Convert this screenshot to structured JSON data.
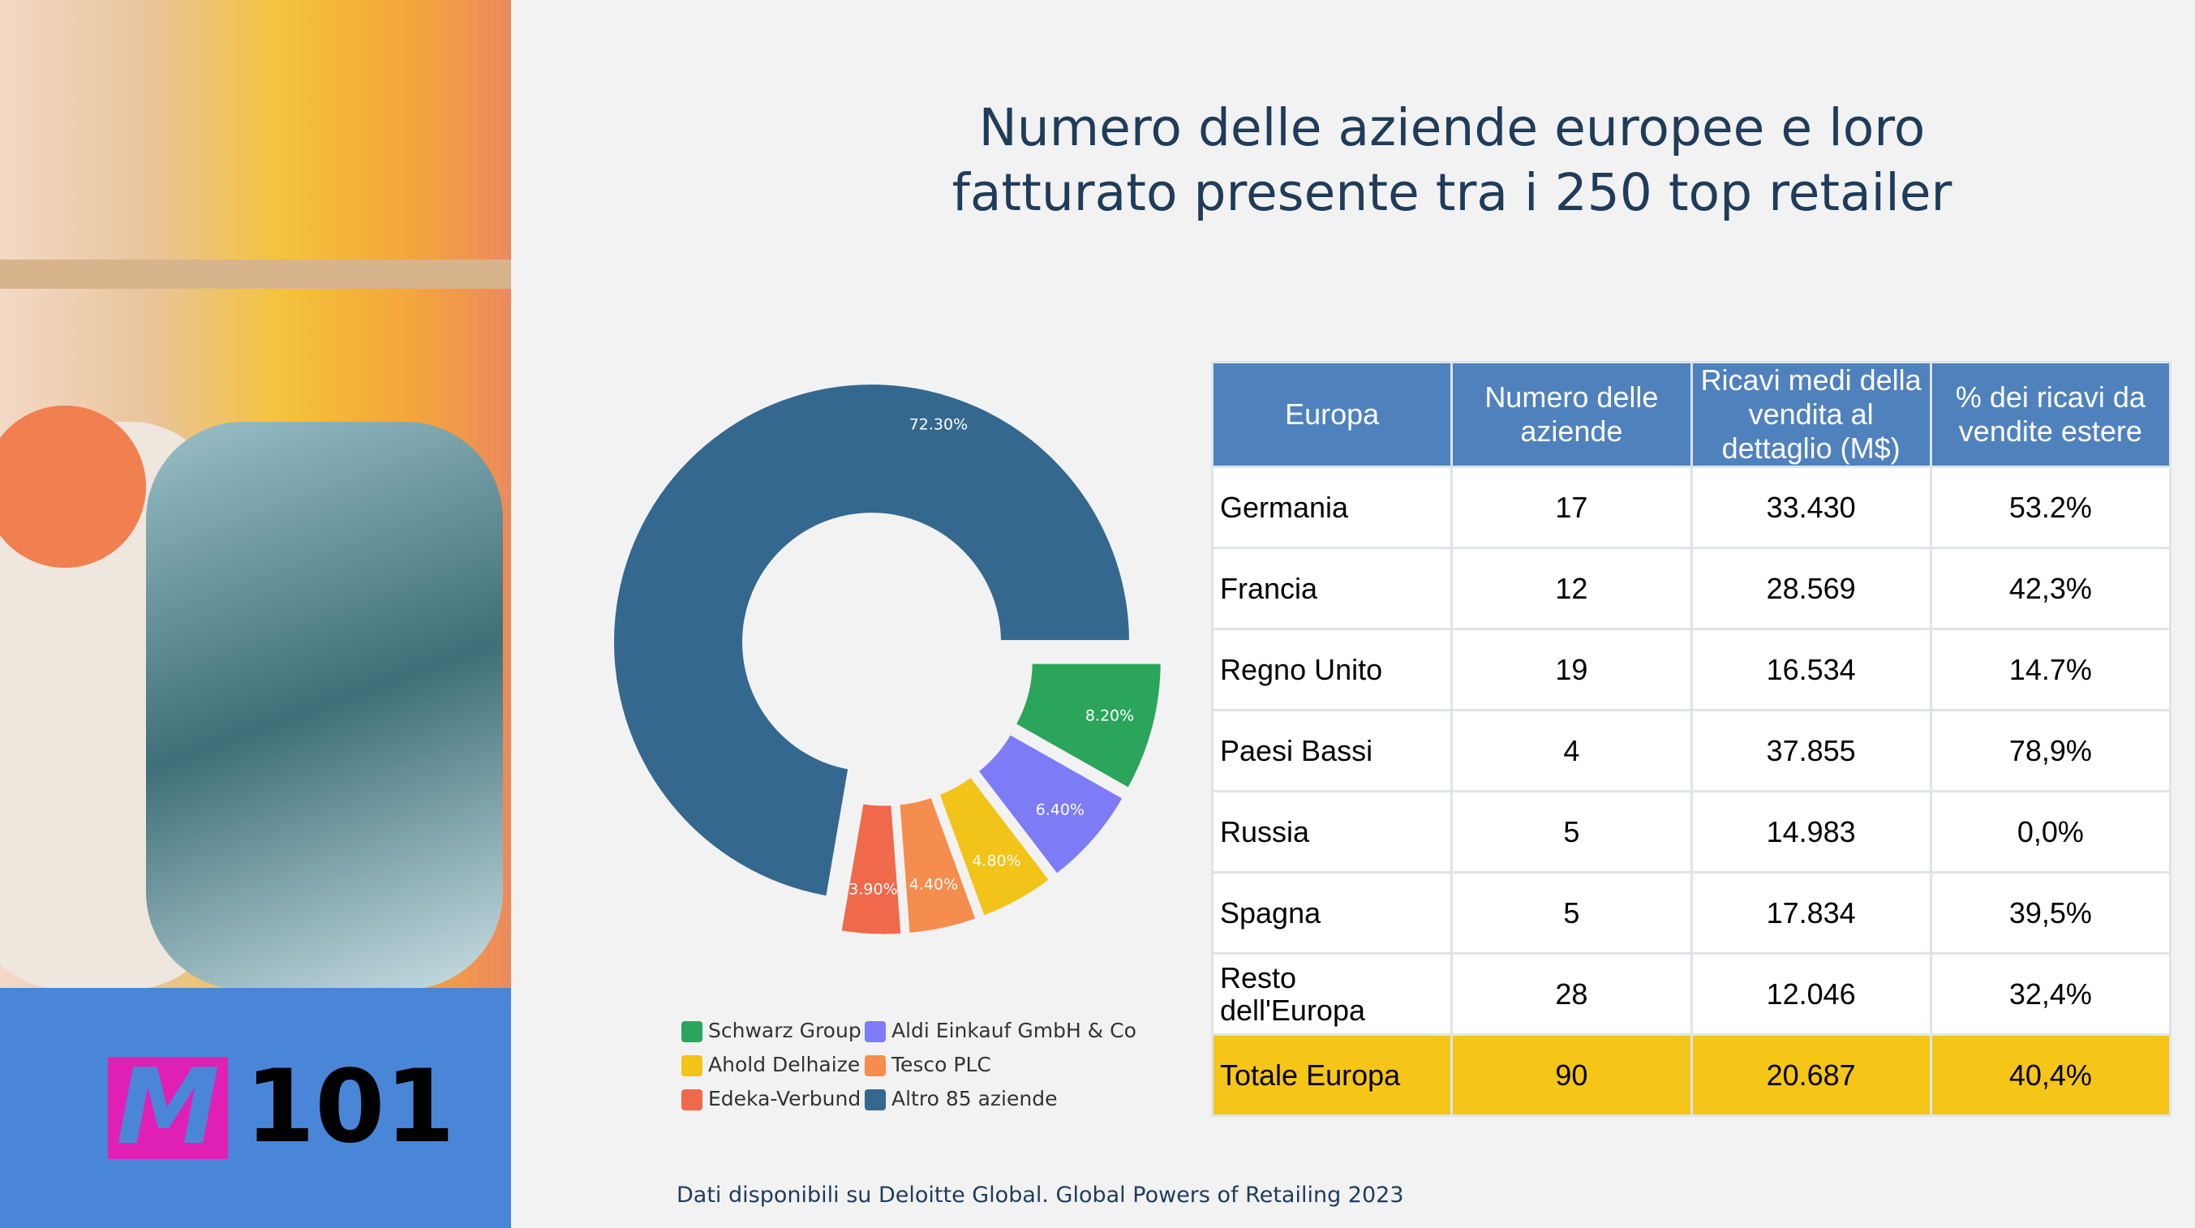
{
  "title": [
    "Numero delle aziende europee e loro",
    "fatturato presente tra i 250 top retailer"
  ],
  "logo": {
    "mark": "M",
    "text": "101"
  },
  "chart_data": {
    "type": "pie",
    "categories": [
      "Schwarz Group",
      "Aldi Einkauf GmbH & Co",
      "Ahold Delhaize",
      "Tesco PLC",
      "Edeka-Verbund",
      "Altro 85 aziende"
    ],
    "values": [
      8.2,
      6.4,
      4.8,
      4.4,
      3.9,
      72.3
    ],
    "value_labels": [
      "8.20%",
      "6.40%",
      "4.80%",
      "4.40%",
      "3.90%",
      "72.30%"
    ],
    "colors": [
      "#2ba55c",
      "#7d7cf6",
      "#f2c318",
      "#f48d4e",
      "#f0694b",
      "#34688f"
    ],
    "donut": true
  },
  "table": {
    "header": [
      "Europa",
      "Numero delle aziende",
      "Ricavi medi della vendita al dettaglio (M$)",
      "% dei ricavi da vendite estere"
    ],
    "rows": [
      [
        "Germania",
        "17",
        "33.430",
        "53.2%"
      ],
      [
        "Francia",
        "12",
        "28.569",
        "42,3%"
      ],
      [
        "Regno Unito",
        "19",
        "16.534",
        "14.7%"
      ],
      [
        "Paesi Bassi",
        "4",
        "37.855",
        "78,9%"
      ],
      [
        "Russia",
        "5",
        "14.983",
        "0,0%"
      ],
      [
        "Spagna",
        "5",
        "17.834",
        "39,5%"
      ],
      [
        "Resto dell'Europa",
        "28",
        "12.046",
        "32,4%"
      ],
      [
        "Totale Europa",
        "90",
        "20.687",
        "40,4%"
      ]
    ]
  },
  "footnote": "Dati disponibili su Deloitte Global. Global Powers of Retailing 2023"
}
